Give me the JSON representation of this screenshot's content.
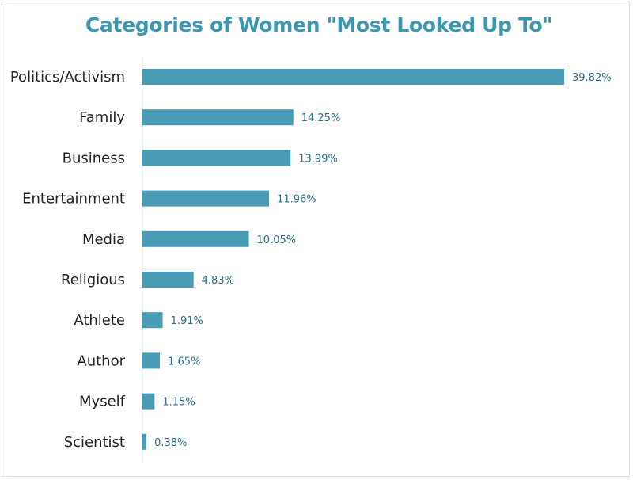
{
  "chart_data": {
    "type": "bar",
    "orientation": "horizontal",
    "title": "Categories of Women \"Most Looked Up To\"",
    "xlabel": "",
    "ylabel": "",
    "categories": [
      "Politics/Activism",
      "Family",
      "Business",
      "Entertainment",
      "Media",
      "Religious",
      "Athlete",
      "Author",
      "Myself",
      "Scientist"
    ],
    "values": [
      39.82,
      14.25,
      13.99,
      11.96,
      10.05,
      4.83,
      1.91,
      1.65,
      1.15,
      0.38
    ],
    "value_labels": [
      "39.82%",
      "14.25%",
      "13.99%",
      "11.96%",
      "10.05%",
      "4.83%",
      "1.91%",
      "1.65%",
      "1.15%",
      "0.38%"
    ],
    "xlim": [
      0,
      42
    ],
    "grid": false,
    "legend": "none",
    "bar_color": "#4a9bb5",
    "title_color": "#3b98b3",
    "value_label_color": "#2b6f86"
  }
}
